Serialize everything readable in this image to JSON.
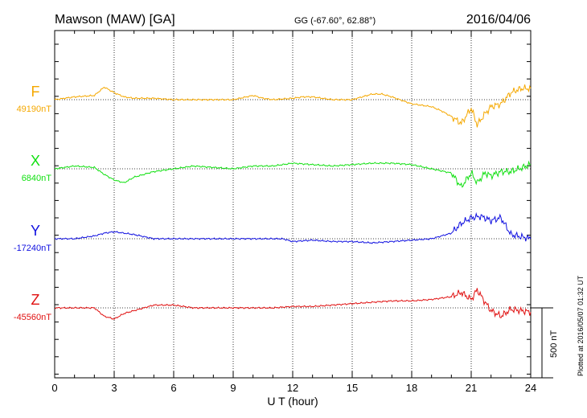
{
  "header": {
    "station": "Mawson (MAW)  [GA]",
    "coords": "GG (-67.60°,  62.88°)",
    "date": "2016/04/06"
  },
  "footer": {
    "plotted": "Plotted at 2016/05/07 01:32 UT"
  },
  "chart_data": {
    "type": "line",
    "xlabel": "U T (hour)",
    "xlim": [
      0,
      24
    ],
    "xticks": [
      "0",
      "3",
      "6",
      "9",
      "12",
      "15",
      "18",
      "21",
      "24"
    ],
    "scale_bar": "500 nT",
    "scale_value_nT": 500,
    "series": [
      {
        "name": "F",
        "baseline": "49190nT",
        "color": "#f5a800",
        "x": [
          0,
          1,
          2,
          2.5,
          3,
          3.5,
          4,
          5,
          6,
          7,
          8,
          9,
          10,
          10.5,
          11,
          12,
          12.5,
          13,
          14,
          15,
          16,
          16.5,
          17,
          18,
          19,
          19.5,
          20,
          20.5,
          21,
          21.3,
          21.7,
          22,
          22.5,
          23,
          23.5,
          24
        ],
        "y": [
          0,
          20,
          30,
          90,
          50,
          20,
          10,
          10,
          0,
          0,
          0,
          0,
          30,
          10,
          0,
          10,
          20,
          20,
          0,
          0,
          40,
          40,
          20,
          -30,
          -50,
          -80,
          -120,
          -170,
          -60,
          -180,
          -100,
          -50,
          -30,
          50,
          80,
          80
        ]
      },
      {
        "name": "X",
        "baseline": "6840nT",
        "color": "#10e010",
        "x": [
          0,
          1,
          2,
          2.5,
          3,
          3.5,
          4,
          5,
          6,
          7,
          8,
          9,
          10,
          11,
          12,
          13,
          14,
          15,
          16,
          17,
          18,
          19,
          20,
          20.5,
          21,
          21.3,
          21.7,
          22,
          22.5,
          23,
          24
        ],
        "y": [
          0,
          20,
          10,
          -40,
          -80,
          -100,
          -60,
          -20,
          0,
          20,
          10,
          0,
          20,
          20,
          40,
          30,
          20,
          30,
          40,
          40,
          30,
          0,
          -30,
          -130,
          -30,
          -100,
          -30,
          -50,
          -20,
          -20,
          30
        ]
      },
      {
        "name": "Y",
        "baseline": "-17240nT",
        "color": "#1010e0",
        "x": [
          0,
          1,
          2,
          2.5,
          3,
          3.5,
          4,
          5,
          6,
          7,
          8,
          9,
          10,
          11,
          11.5,
          12,
          13,
          14,
          15,
          16,
          17,
          18,
          19,
          20,
          20.5,
          21,
          21.5,
          22,
          22.5,
          23,
          24
        ],
        "y": [
          0,
          0,
          20,
          40,
          50,
          40,
          30,
          0,
          0,
          0,
          0,
          0,
          0,
          0,
          0,
          -20,
          -10,
          -20,
          -20,
          -30,
          -20,
          -10,
          0,
          40,
          110,
          150,
          160,
          130,
          150,
          30,
          0
        ]
      },
      {
        "name": "Z",
        "baseline": "-45560nT",
        "color": "#e01010",
        "x": [
          0,
          1,
          2,
          2.5,
          3,
          3.5,
          4,
          5,
          6,
          7,
          8,
          9,
          10,
          11,
          12,
          13,
          14,
          15,
          16,
          17,
          18,
          19,
          20,
          20.5,
          21,
          21.3,
          21.7,
          22,
          22.5,
          23,
          24
        ],
        "y": [
          0,
          0,
          0,
          -60,
          -80,
          -40,
          -20,
          20,
          20,
          0,
          0,
          0,
          0,
          0,
          10,
          10,
          20,
          30,
          40,
          50,
          50,
          60,
          80,
          110,
          60,
          130,
          40,
          -20,
          -60,
          -10,
          -30
        ]
      }
    ]
  }
}
